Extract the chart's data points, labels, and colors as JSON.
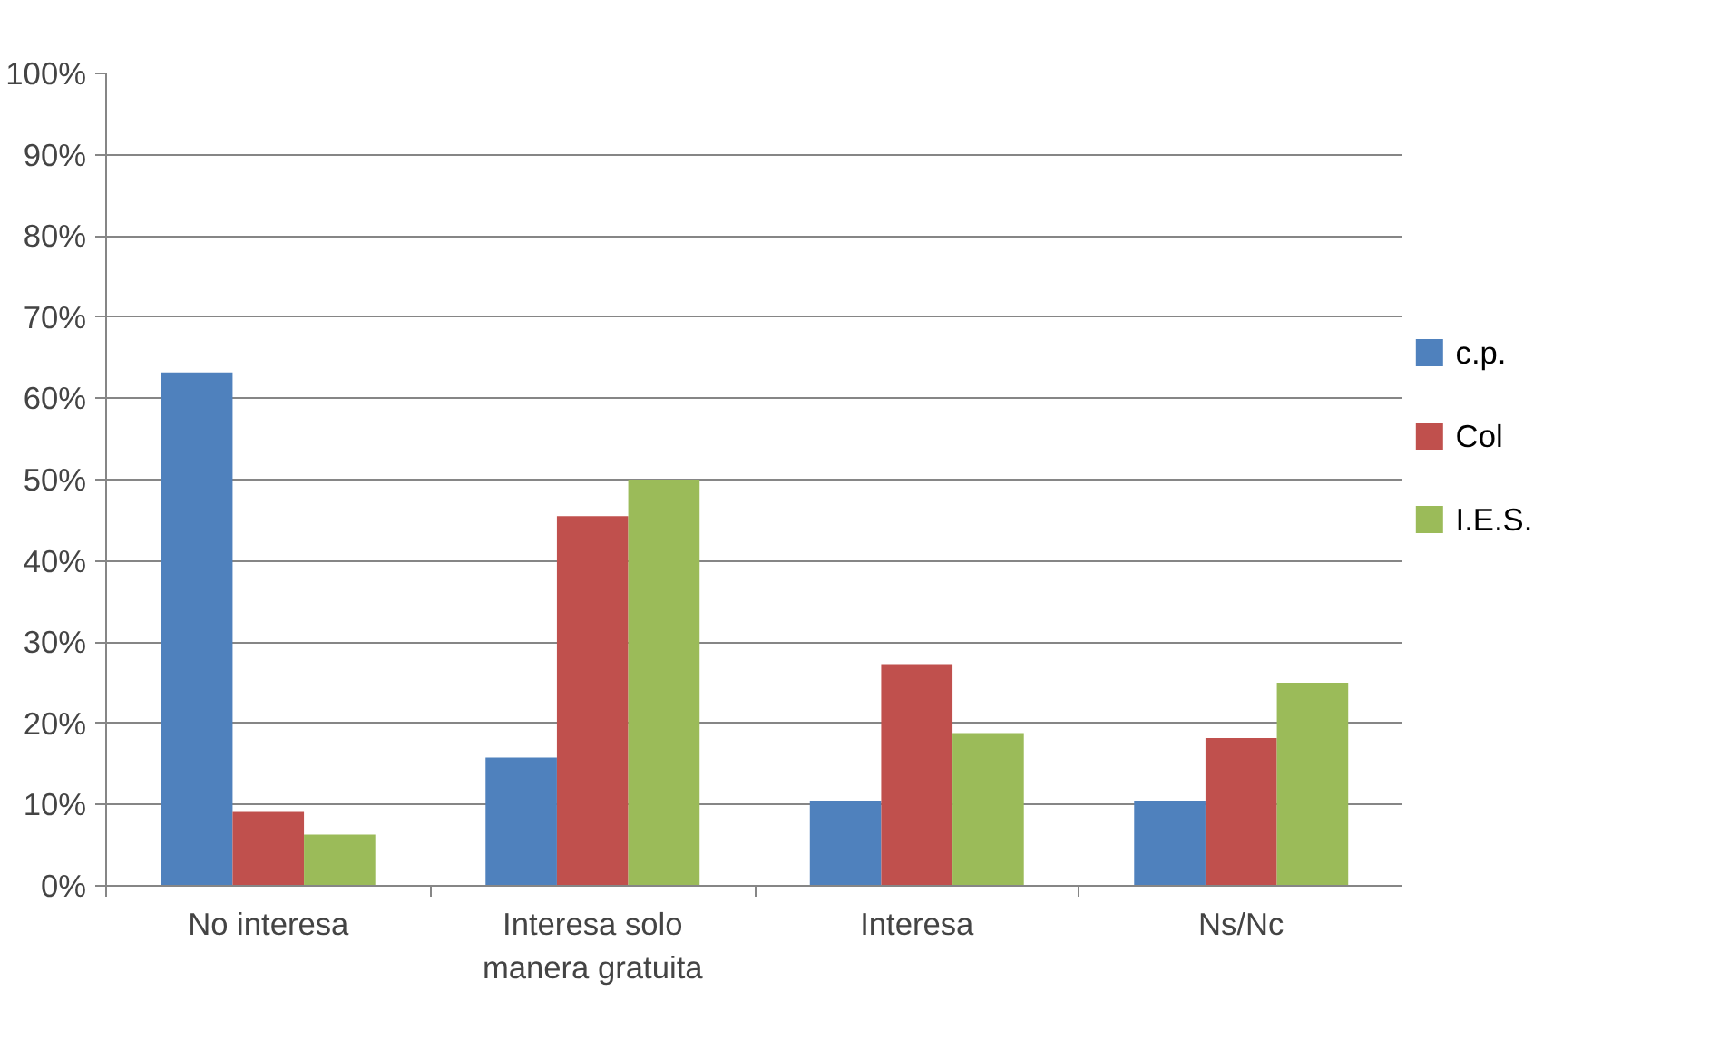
{
  "chart_data": {
    "type": "bar",
    "categories": [
      "No interesa",
      "Interesa solo manera gratuita",
      "Interesa",
      "Ns/Nc"
    ],
    "series": [
      {
        "name": "c.p.",
        "color": "#4f81bd",
        "values": [
          63.2,
          15.8,
          10.5,
          10.5
        ]
      },
      {
        "name": "Col",
        "color": "#c0504d",
        "values": [
          9.1,
          45.5,
          27.3,
          18.2
        ]
      },
      {
        "name": "I.E.S.",
        "color": "#9bbb59",
        "values": [
          6.3,
          50,
          18.8,
          25
        ]
      }
    ],
    "ylim": [
      0,
      100
    ],
    "yticks": [
      {
        "value": 0,
        "label": "0%"
      },
      {
        "value": 10,
        "label": "10%"
      },
      {
        "value": 20,
        "label": "20%"
      },
      {
        "value": 30,
        "label": "30%"
      },
      {
        "value": 40,
        "label": "40%"
      },
      {
        "value": 50,
        "label": "50%"
      },
      {
        "value": 60,
        "label": "60%"
      },
      {
        "value": 70,
        "label": "70%"
      },
      {
        "value": 80,
        "label": "80%"
      },
      {
        "value": 90,
        "label": "90%"
      },
      {
        "value": 100,
        "label": "100%"
      }
    ],
    "grid": "y",
    "legend": "right"
  }
}
